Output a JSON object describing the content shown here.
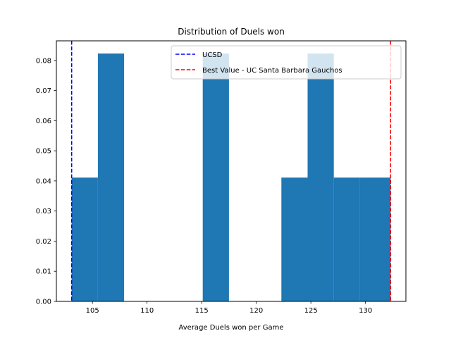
{
  "chart_data": {
    "type": "bar",
    "title": "Distribution of Duels won",
    "xlabel": "Average Duels won per Game",
    "ylabel": "",
    "xlim": [
      101.7,
      133.7
    ],
    "ylim": [
      0,
      0.0865
    ],
    "bar_color": "#1f77b4",
    "bin_edges": [
      103.1,
      105.5,
      107.9,
      110.3,
      112.7,
      115.1,
      117.5,
      119.9,
      122.3,
      124.7,
      127.1,
      129.5,
      132.3
    ],
    "values": [
      0.0411,
      0.0823,
      0,
      0,
      0,
      0.0823,
      0,
      0,
      0.0411,
      0.0823,
      0.0411,
      0.0411
    ],
    "x_ticks": [
      105,
      110,
      115,
      120,
      125,
      130
    ],
    "x_tick_labels": [
      "105",
      "110",
      "115",
      "120",
      "125",
      "130"
    ],
    "y_ticks": [
      0,
      0.01,
      0.02,
      0.03,
      0.04,
      0.05,
      0.06,
      0.07,
      0.08
    ],
    "y_tick_labels": [
      "0.00",
      "0.01",
      "0.02",
      "0.03",
      "0.04",
      "0.05",
      "0.06",
      "0.07",
      "0.08"
    ],
    "reference_lines": [
      {
        "name": "UCSD",
        "x": 103.1,
        "color": "#0000ff",
        "style": "dashed"
      },
      {
        "name": "Best Value - UC Santa Barbara Gauchos",
        "x": 132.3,
        "color": "#ff0000",
        "style": "dashed"
      }
    ],
    "legend": {
      "placement": "top-right"
    },
    "grid": false
  }
}
